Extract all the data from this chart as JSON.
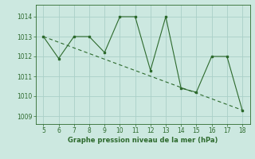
{
  "x": [
    5,
    6,
    7,
    8,
    9,
    10,
    11,
    12,
    13,
    14,
    15,
    16,
    17,
    18
  ],
  "y": [
    1013,
    1011.9,
    1013,
    1013,
    1012.2,
    1014,
    1014,
    1011.3,
    1014,
    1010.4,
    1010.2,
    1012,
    1012,
    1009.3
  ],
  "trend_x": [
    5,
    18
  ],
  "trend_y": [
    1013,
    1009.3
  ],
  "line_color": "#2d6a2d",
  "bg_color": "#cce8e0",
  "grid_color": "#aacfc8",
  "xlabel": "Graphe pression niveau de la mer (hPa)",
  "xlim": [
    4.5,
    18.5
  ],
  "ylim": [
    1008.6,
    1014.6
  ],
  "yticks": [
    1009,
    1010,
    1011,
    1012,
    1013,
    1014
  ],
  "xticks": [
    5,
    6,
    7,
    8,
    9,
    10,
    11,
    12,
    13,
    14,
    15,
    16,
    17,
    18
  ]
}
